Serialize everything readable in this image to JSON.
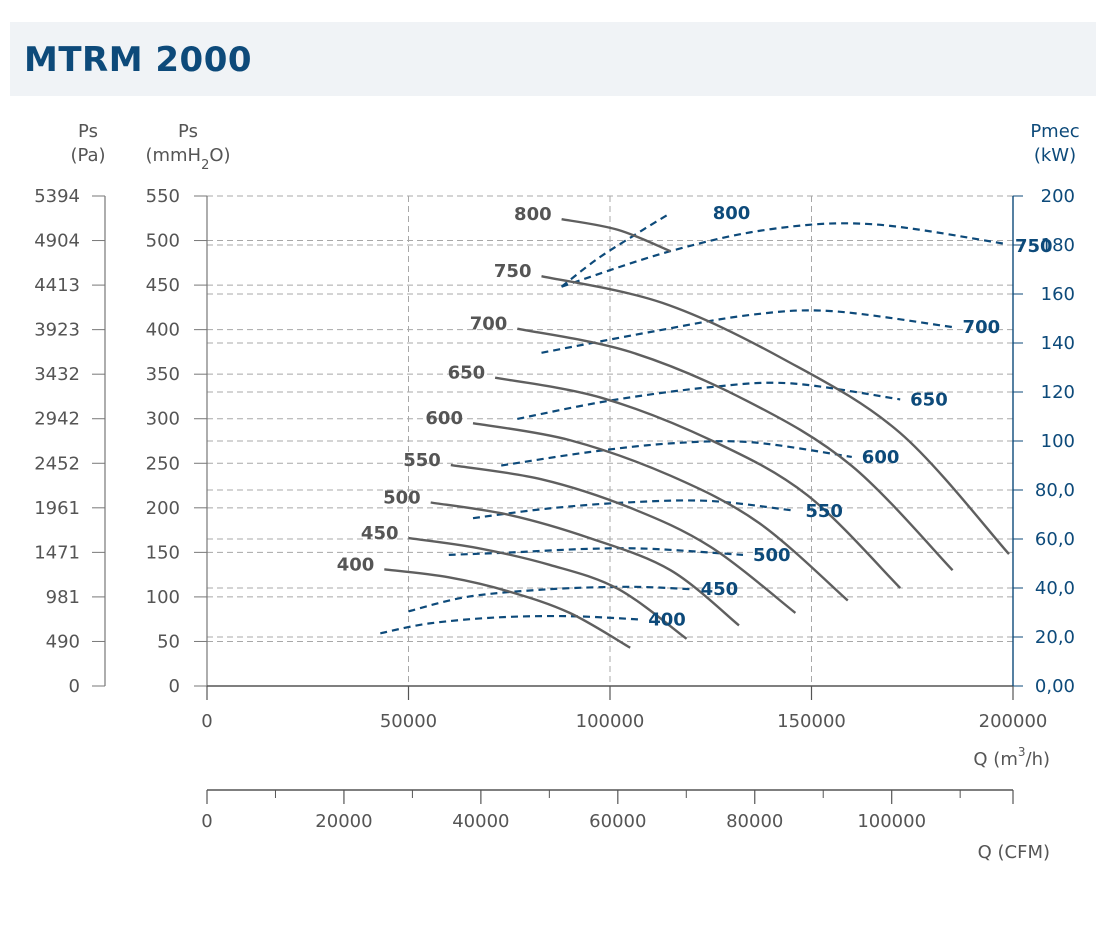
{
  "title": "MTRM 2000",
  "colors": {
    "pressure_curves": "#5f5f5f",
    "power_curves": "#0d4a7a",
    "grid": "#a8a8a8",
    "title_bg": "#f0f3f6"
  },
  "axes": {
    "pa_header": [
      "Ps",
      "(Pa)"
    ],
    "mm_header": [
      "Ps",
      "(mmH",
      "2",
      "O)"
    ],
    "pmec_header": [
      "Pmec",
      "(kW)"
    ],
    "x_label": "Q (m",
    "x_label_sup": "3",
    "x_label_end": "/h)",
    "cfm_label": "Q (CFM)",
    "pa_ticks": [
      "0",
      "490",
      "981",
      "1471",
      "1961",
      "2452",
      "2942",
      "3432",
      "3923",
      "4413",
      "4904",
      "5394"
    ],
    "mm_ticks": [
      "0",
      "50",
      "100",
      "150",
      "200",
      "250",
      "300",
      "350",
      "400",
      "450",
      "500",
      "550"
    ],
    "pmec_ticks": [
      "0,00",
      "20,0",
      "40,0",
      "60,0",
      "80,0",
      "100",
      "120",
      "140",
      "160",
      "180",
      "200"
    ],
    "x_ticks": [
      "0",
      "50000",
      "100000",
      "150000",
      "200000"
    ],
    "cfm_ticks": [
      "0",
      "20000",
      "40000",
      "60000",
      "80000",
      "100000"
    ]
  },
  "chart_data": {
    "type": "line",
    "title": "MTRM 2000",
    "xlabel": "Q (m3/h)",
    "ylabel": "Ps (mmH2O)",
    "y2label": "Pmec (kW)",
    "xlim": [
      0,
      200000
    ],
    "ylim": [
      0,
      550
    ],
    "y2lim": [
      0,
      200
    ],
    "pressure_series": [
      {
        "name": "400",
        "points": [
          [
            44000,
            131
          ],
          [
            60000,
            122
          ],
          [
            75000,
            106
          ],
          [
            90000,
            82
          ],
          [
            105000,
            43
          ]
        ]
      },
      {
        "name": "450",
        "points": [
          [
            50000,
            166
          ],
          [
            67000,
            155
          ],
          [
            85000,
            136
          ],
          [
            102000,
            109
          ],
          [
            119000,
            53
          ]
        ]
      },
      {
        "name": "500",
        "points": [
          [
            55500,
            206
          ],
          [
            75000,
            192
          ],
          [
            95000,
            166
          ],
          [
            115000,
            130
          ],
          [
            132000,
            68
          ]
        ]
      },
      {
        "name": "550",
        "points": [
          [
            60500,
            248
          ],
          [
            83000,
            232
          ],
          [
            105000,
            200
          ],
          [
            125000,
            156
          ],
          [
            146000,
            82
          ]
        ]
      },
      {
        "name": "600",
        "points": [
          [
            66000,
            295
          ],
          [
            90000,
            276
          ],
          [
            115000,
            236
          ],
          [
            137000,
            183
          ],
          [
            159000,
            96
          ]
        ]
      },
      {
        "name": "650",
        "points": [
          [
            71500,
            346
          ],
          [
            97500,
            324
          ],
          [
            125000,
            276
          ],
          [
            149000,
            214
          ],
          [
            172000,
            110
          ]
        ]
      },
      {
        "name": "700",
        "points": [
          [
            77000,
            401
          ],
          [
            105000,
            375
          ],
          [
            134000,
            320
          ],
          [
            160000,
            247
          ],
          [
            185000,
            130
          ]
        ]
      },
      {
        "name": "750",
        "points": [
          [
            83000,
            460
          ],
          [
            113000,
            430
          ],
          [
            143000,
            367
          ],
          [
            172000,
            284
          ],
          [
            199000,
            148
          ]
        ]
      },
      {
        "name": "800",
        "points": [
          [
            88000,
            524
          ],
          [
            102000,
            512
          ],
          [
            115000,
            488
          ]
        ]
      }
    ],
    "power_series": [
      {
        "name": "400",
        "points": [
          [
            43000,
            21.5
          ],
          [
            55000,
            25.5
          ],
          [
            72000,
            28.0
          ],
          [
            90000,
            28.5
          ],
          [
            107000,
            27.2
          ]
        ]
      },
      {
        "name": "450",
        "points": [
          [
            50000,
            30.5
          ],
          [
            65000,
            36.5
          ],
          [
            85000,
            39.5
          ],
          [
            105000,
            40.5
          ],
          [
            120000,
            39.5
          ]
        ]
      },
      {
        "name": "500",
        "points": [
          [
            60000,
            53.5
          ],
          [
            75000,
            54.5
          ],
          [
            95000,
            56.0
          ],
          [
            110000,
            56.0
          ],
          [
            133000,
            53.5
          ]
        ]
      },
      {
        "name": "550",
        "points": [
          [
            66000,
            68.5
          ],
          [
            85000,
            72.5
          ],
          [
            105000,
            75.0
          ],
          [
            125000,
            75.5
          ],
          [
            146000,
            71.5
          ]
        ]
      },
      {
        "name": "600",
        "points": [
          [
            73000,
            90.0
          ],
          [
            95000,
            95.5
          ],
          [
            115000,
            99.0
          ],
          [
            135000,
            99.5
          ],
          [
            160000,
            93.5
          ]
        ]
      },
      {
        "name": "650",
        "points": [
          [
            77000,
            109.0
          ],
          [
            100000,
            116.5
          ],
          [
            125000,
            122.0
          ],
          [
            145000,
            123.5
          ],
          [
            172000,
            117.0
          ]
        ]
      },
      {
        "name": "700",
        "points": [
          [
            83000,
            136.0
          ],
          [
            110000,
            144.5
          ],
          [
            135000,
            151.5
          ],
          [
            155000,
            153.0
          ],
          [
            185000,
            146.5
          ]
        ]
      },
      {
        "name": "750",
        "points": [
          [
            88000,
            163.0
          ],
          [
            115000,
            177.5
          ],
          [
            140000,
            186.5
          ],
          [
            165000,
            188.5
          ],
          [
            198000,
            180.5
          ]
        ]
      },
      {
        "name": "800",
        "points": [
          [
            88000,
            163.0
          ],
          [
            97000,
            174.5
          ],
          [
            108000,
            186.0
          ],
          [
            115000,
            193.0
          ]
        ]
      }
    ],
    "pressure_labels": [
      "400",
      "450",
      "500",
      "550",
      "600",
      "650",
      "700",
      "750",
      "800"
    ],
    "power_labels": [
      "400",
      "450",
      "500",
      "550",
      "600",
      "650",
      "700",
      "750",
      "800"
    ],
    "grid": true
  }
}
